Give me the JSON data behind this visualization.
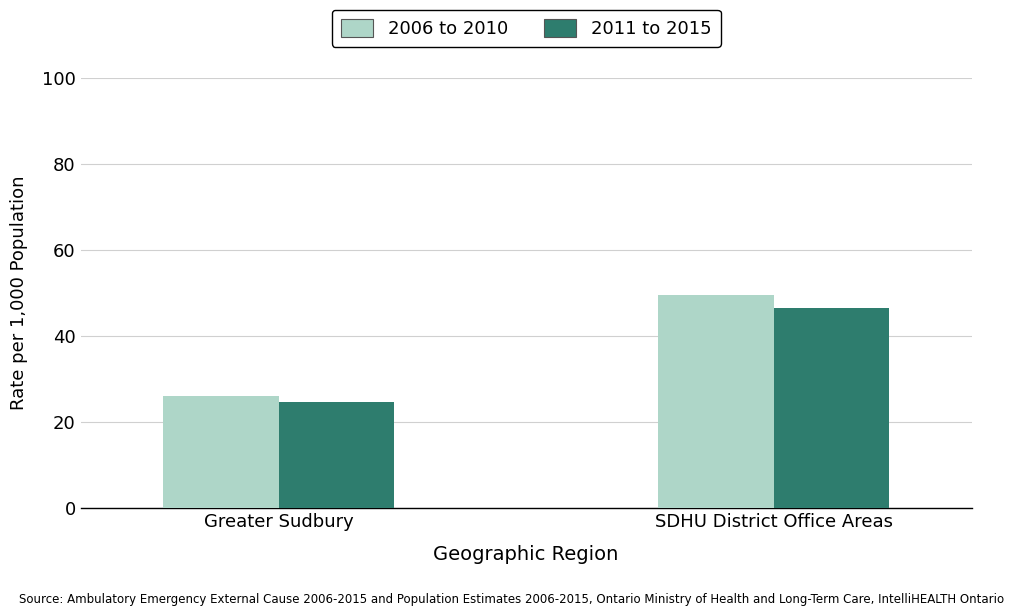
{
  "categories": [
    "Greater Sudbury",
    "SDHU District Office Areas"
  ],
  "series": {
    "2006 to 2010": [
      26,
      49.5
    ],
    "2011 to 2015": [
      24.5,
      46.5
    ]
  },
  "color_2006": "#aed6c8",
  "color_2011": "#2e7d6e",
  "ylabel": "Rate per 1,000 Population",
  "xlabel": "Geographic Region",
  "ylim": [
    0,
    100
  ],
  "yticks": [
    0,
    20,
    40,
    60,
    80,
    100
  ],
  "legend_labels": [
    "2006 to 2010",
    "2011 to 2015"
  ],
  "source_text": "Source: Ambulatory Emergency External Cause 2006-2015 and Population Estimates 2006-2015, Ontario Ministry of Health and Long-Term Care, IntelliHEALTH Ontario",
  "background_color": "#ffffff",
  "bar_width": 0.35,
  "x_positions": [
    0.0,
    1.5
  ]
}
